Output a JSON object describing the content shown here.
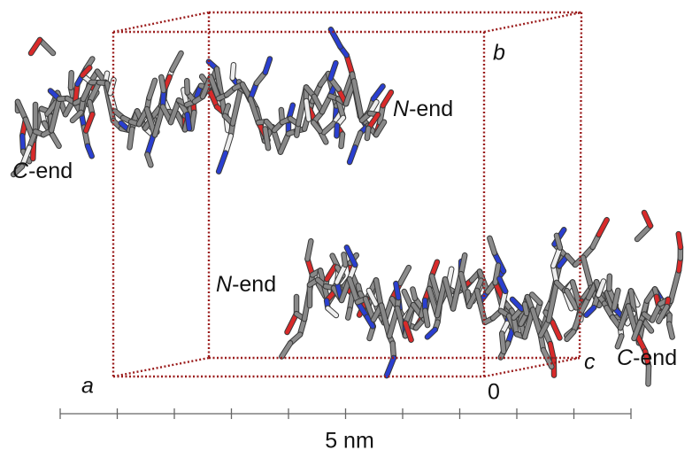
{
  "labels": {
    "upper_c_end": {
      "italic": "C",
      "rest": "-end"
    },
    "upper_n_end": {
      "italic": "N",
      "rest": "-end"
    },
    "lower_n_end": {
      "italic": "N",
      "rest": "-end"
    },
    "lower_c_end": {
      "italic": "C",
      "rest": "-end"
    },
    "axis_a": "a",
    "axis_b": "b",
    "axis_c": "c",
    "origin": "0"
  },
  "scale_bar": {
    "label": "5 nm"
  }
}
